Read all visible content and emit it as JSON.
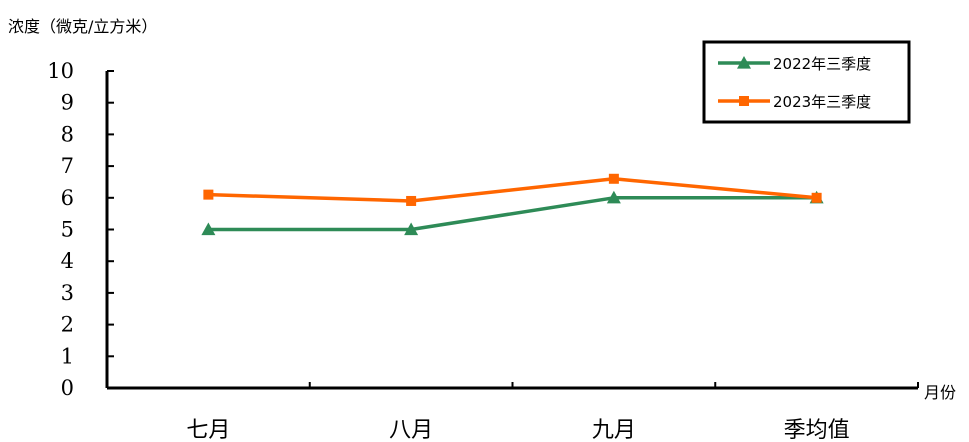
{
  "chart_data": {
    "type": "line",
    "ylabel": "浓度（微克/立方米）",
    "xlabel": "月份",
    "categories": [
      "七月",
      "八月",
      "九月",
      "季均值"
    ],
    "ylim": [
      0,
      10
    ],
    "yticks": [
      "0",
      "1",
      "2",
      "3",
      "4",
      "5",
      "6",
      "7",
      "8",
      "9",
      "10"
    ],
    "grid": false,
    "legend_position": "top-right",
    "series": [
      {
        "name": "2022年三季度",
        "values": [
          5,
          5,
          6,
          6
        ],
        "color": "#2e8b57",
        "marker": "triangle"
      },
      {
        "name": "2023年三季度",
        "values": [
          6.1,
          5.9,
          6.6,
          6
        ],
        "color": "#ff6600",
        "marker": "square"
      }
    ]
  }
}
